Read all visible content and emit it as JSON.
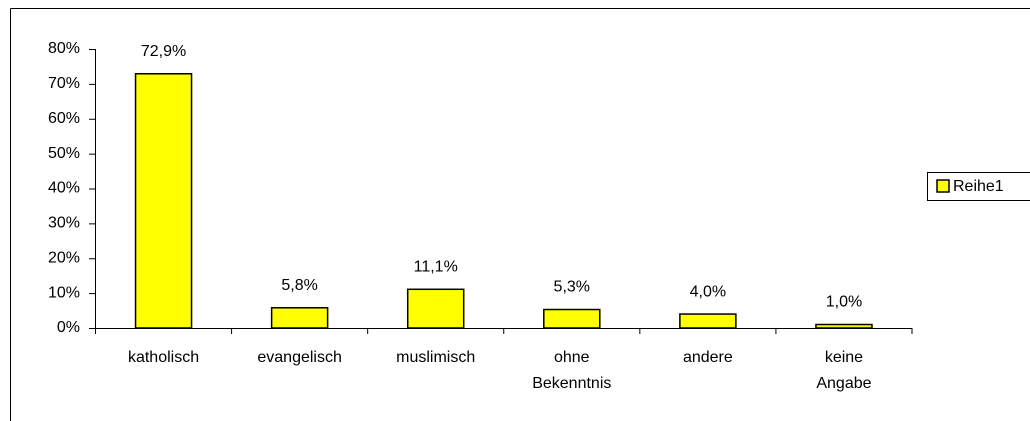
{
  "chart_data": {
    "type": "bar",
    "categories": [
      "katholisch",
      "evangelisch",
      "muslimisch",
      "ohne Bekenntnis",
      "andere",
      "keine Angabe"
    ],
    "series": [
      {
        "name": "Reihe1",
        "color": "#ffff00",
        "values": [
          72.9,
          5.8,
          11.1,
          5.3,
          4.0,
          1.0
        ],
        "value_labels": [
          "72,9%",
          "5,8%",
          "11,1%",
          "5,3%",
          "4,0%",
          "1,0%"
        ]
      }
    ],
    "ylim": [
      0,
      80
    ],
    "yticks": [
      {
        "value": 0,
        "label": "0%"
      },
      {
        "value": 10,
        "label": "10%"
      },
      {
        "value": 20,
        "label": "20%"
      },
      {
        "value": 30,
        "label": "30%"
      },
      {
        "value": 40,
        "label": "40%"
      },
      {
        "value": 50,
        "label": "50%"
      },
      {
        "value": 60,
        "label": "60%"
      },
      {
        "value": 70,
        "label": "70%"
      },
      {
        "value": 80,
        "label": "80%"
      }
    ],
    "grid": false,
    "legend": "right"
  }
}
